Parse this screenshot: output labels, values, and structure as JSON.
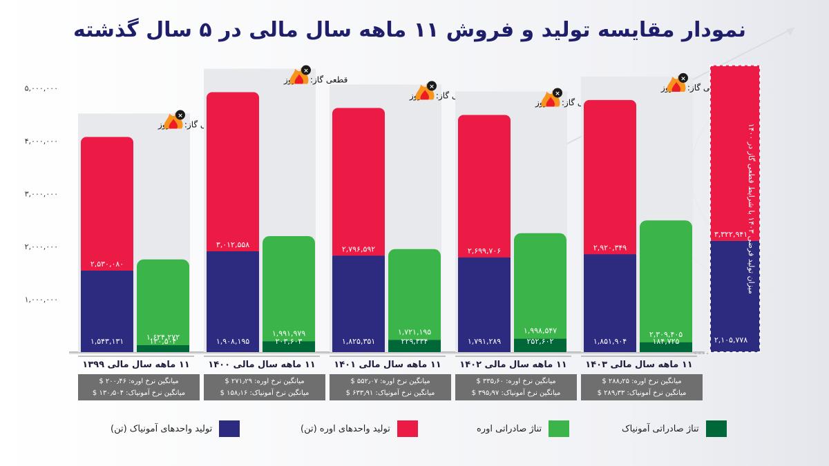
{
  "title": "نمودار مقایسه تولید و فروش ۱۱ ماهه سال مالی در ۵ سال گذشته",
  "colors": {
    "ammonia_production": "#2c2b7f",
    "urea_production": "#ec1b45",
    "urea_export": "#3bb54a",
    "ammonia_export": "#006838",
    "title": "#1e1e6b"
  },
  "legend": [
    {
      "label": "تولید واحدهای آمونیاک (تن)",
      "color": "#2c2b7f"
    },
    {
      "label": "تولید واحدهای اوره (تن)",
      "color": "#ec1b45"
    },
    {
      "label": "تناژ صادراتی اوره",
      "color": "#3bb54a"
    },
    {
      "label": "تناژ صادراتی آمونیاک",
      "color": "#006838"
    }
  ],
  "projection_label": "میزان تولید فرضی ۱۴۰۳ با شرایط قطعی گاز در ۱۴۰۰",
  "icons": [
    "flame-icon",
    "close-icon"
  ],
  "periods": [
    {
      "label": "۱۱ ماهه سال مالی ۱۳۹۹",
      "gas_cut": "قطعی گاز: ۸۹ روز",
      "urea_rate": "میانگین نرخ اوره: ۲۰۰٫۴۶ $",
      "ammonia_rate": "میانگین نرخ آمونیاک: ۱۳۰٫۵۰۴ $",
      "ammonia_prod_label": "۱,۵۴۳,۱۳۱",
      "urea_prod_label": "۲,۵۳۰,۰۸۰",
      "urea_export_label": "۱,۶۲۴,۲۷۲",
      "ammonia_export_label": "۱۳۰,۵۰۴"
    },
    {
      "label": "۱۱ ماهه سال مالی ۱۴۰۰",
      "gas_cut": "قطعی گاز: ۲۵ روز",
      "urea_rate": "میانگین نرخ اوره: ۲۷۱٫۲۹ $",
      "ammonia_rate": "میانگین نرخ آمونیاک: ۱۵۸٫۱۶ $",
      "ammonia_prod_label": "۱,۹۰۸,۱۹۵",
      "urea_prod_label": "۳,۰۱۲,۵۵۸",
      "urea_export_label": "۱,۹۹۱,۹۷۹",
      "ammonia_export_label": "۲۰۳,۶۰۳"
    },
    {
      "label": "۱۱ ماهه سال مالی ۱۴۰۱",
      "gas_cut": "قطعی گاز: ۸۱ روز",
      "urea_rate": "میانگین نرخ اوره: ۵۵۲٫۰۷ $",
      "ammonia_rate": "میانگین نرخ آمونیاک: ۶۳۳٫۹۱ $",
      "ammonia_prod_label": "۱,۸۲۵,۳۵۱",
      "urea_prod_label": "۲,۷۹۶,۵۹۲",
      "urea_export_label": "۱,۷۲۱,۱۹۵",
      "ammonia_export_label": "۲۲۹,۳۳۴"
    },
    {
      "label": "۱۱ ماهه سال مالی ۱۴۰۲",
      "gas_cut": "قطعی گاز: ۷۶ روز",
      "urea_rate": "میانگین نرخ اوره: ۳۳۵٫۶۰ $",
      "ammonia_rate": "میانگین نرخ آمونیاک: ۳۹۵٫۹۷ $",
      "ammonia_prod_label": "۱,۷۹۱,۲۸۹",
      "urea_prod_label": "۲,۶۹۹,۷۰۶",
      "urea_export_label": "۱,۹۹۸,۵۴۷",
      "ammonia_export_label": "۲۵۲,۶۰۲"
    },
    {
      "label": "۱۱ ماهه سال مالی ۱۴۰۳",
      "gas_cut": "قطعی گاز: ۷۱ روز",
      "urea_rate": "میانگین نرخ اوره: ۲۸۸٫۲۵ $",
      "ammonia_rate": "میانگین نرخ آمونیاک: ۲۸۹٫۳۳ $",
      "ammonia_prod_label": "۱,۸۵۱,۹۰۴",
      "urea_prod_label": "۲,۹۲۰,۳۴۹",
      "urea_export_label": "۲,۳۰۹,۴۰۵",
      "ammonia_export_label": "۱۸۴,۷۲۵"
    }
  ],
  "projection": {
    "ammonia_prod_label": "۲,۱۰۵,۷۷۸",
    "urea_prod_label": "۳,۳۲۲,۹۴۱"
  },
  "chart_data": {
    "type": "bar",
    "title": "نمودار مقایسه تولید و فروش ۱۱ ماهه سال مالی در ۵ سال گذشته",
    "categories": [
      "۱۱ ماهه سال مالی ۱۳۹۹",
      "۱۱ ماهه سال مالی ۱۴۰۰",
      "۱۱ ماهه سال مالی ۱۴۰۱",
      "۱۱ ماهه سال مالی ۱۴۰۲",
      "۱۱ ماهه سال مالی ۱۴۰۳"
    ],
    "stacked": true,
    "ylim": [
      0,
      5000000
    ],
    "yticks": [
      1000000,
      2000000,
      3000000,
      4000000,
      5000000
    ],
    "ytick_labels": [
      "۱,۰۰۰,۰۰۰",
      "۲,۰۰۰,۰۰۰",
      "۳,۰۰۰,۰۰۰",
      "۴,۰۰۰,۰۰۰",
      "۵,۰۰۰,۰۰۰"
    ],
    "series": [
      {
        "name": "تولید واحدهای آمونیاک (تن)",
        "stack": "production",
        "values": [
          1543131,
          1908195,
          1825351,
          1791289,
          1851904
        ]
      },
      {
        "name": "تولید واحدهای اوره (تن)",
        "stack": "production",
        "values": [
          2530080,
          3012558,
          2796592,
          2699706,
          2920349
        ]
      },
      {
        "name": "تناژ صادراتی آمونیاک",
        "stack": "export",
        "values": [
          130504,
          203603,
          229334,
          252602,
          184725
        ]
      },
      {
        "name": "تناژ صادراتی اوره",
        "stack": "export",
        "values": [
          1624272,
          1991979,
          1721195,
          1998547,
          2309405
        ]
      }
    ],
    "projection": {
      "label": "میزان تولید فرضی ۱۴۰۳ با شرایط قطعی گاز در ۱۴۰۰",
      "ammonia_production": 2105778,
      "urea_production": 3322941
    },
    "gas_cut_days": [
      89,
      25,
      81,
      76,
      71
    ],
    "legend_position": "bottom"
  }
}
